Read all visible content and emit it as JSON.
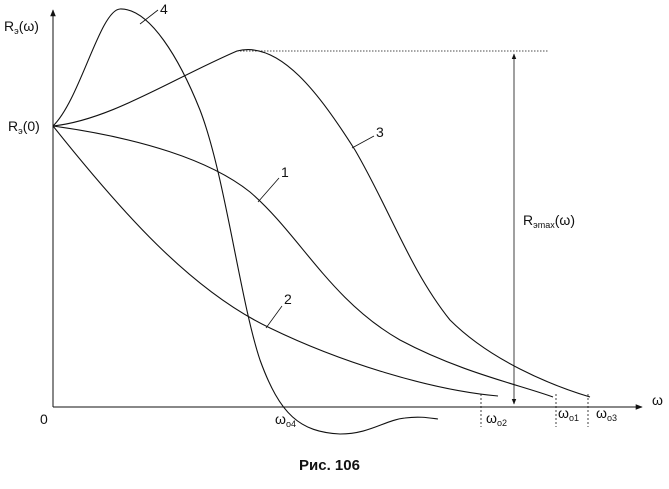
{
  "axes": {
    "y_label_main": "R",
    "y_label_sub": "э",
    "y_label_arg": "(ω)",
    "x_label": "ω",
    "origin_label": "0"
  },
  "start_label": {
    "main": "R",
    "sub": "э",
    "arg": "(0)"
  },
  "rmax_label": {
    "main": "R",
    "sub": "эmax",
    "arg": "(ω)"
  },
  "curves": [
    {
      "label": "1"
    },
    {
      "label": "2"
    },
    {
      "label": "3"
    },
    {
      "label": "4"
    }
  ],
  "omega_ticks": [
    {
      "main": "ω",
      "sub": "о4"
    },
    {
      "main": "ω",
      "sub": "о2"
    },
    {
      "main": "ω",
      "sub": "о1"
    },
    {
      "main": "ω",
      "sub": "о3"
    }
  ],
  "caption": "Рис. 106"
}
